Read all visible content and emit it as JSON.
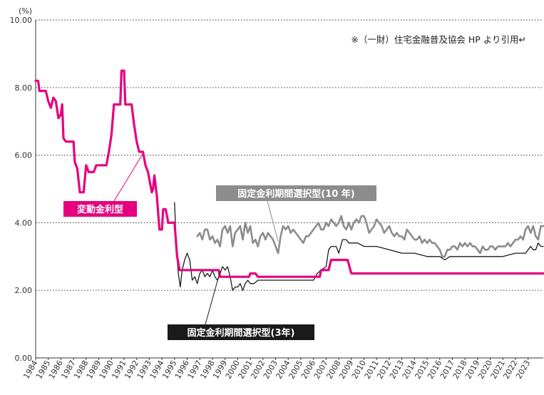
{
  "chart_data": {
    "type": "line",
    "y_unit": "(%)",
    "source_note": "※（一財）住宅金融普及協会 HP より引用↵",
    "ylim": [
      0,
      10
    ],
    "y_ticks": [
      "0.00",
      "2.00",
      "4.00",
      "6.00",
      "8.00",
      "10.00"
    ],
    "x_tick_labels": [
      "1984",
      "1985",
      "1986",
      "1987",
      "1988",
      "1989",
      "1990",
      "1991",
      "1992",
      "1993",
      "1994",
      "1995",
      "1996",
      "1997",
      "1998",
      "1999",
      "2000",
      "2001",
      "2002",
      "2003",
      "2004",
      "2005",
      "2006",
      "2007",
      "2008",
      "2009",
      "2010",
      "2011",
      "2012",
      "2013",
      "2014",
      "2015",
      "2016",
      "2017",
      "2018",
      "2019",
      "2020",
      "2021",
      "2022",
      "2023"
    ],
    "xlim": [
      1984,
      2024.2
    ],
    "grid": "dotted horizontal",
    "series": [
      {
        "name": "変動金利型",
        "color": "#e6007e",
        "points": [
          [
            1984.0,
            8.2
          ],
          [
            1984.2,
            8.2
          ],
          [
            1984.3,
            7.9
          ],
          [
            1984.8,
            7.9
          ],
          [
            1985.0,
            7.6
          ],
          [
            1985.2,
            7.4
          ],
          [
            1985.4,
            7.7
          ],
          [
            1985.6,
            7.6
          ],
          [
            1985.8,
            7.1
          ],
          [
            1986.0,
            7.2
          ],
          [
            1986.1,
            7.5
          ],
          [
            1986.2,
            6.5
          ],
          [
            1986.4,
            6.4
          ],
          [
            1987.0,
            6.4
          ],
          [
            1987.1,
            5.8
          ],
          [
            1987.3,
            5.6
          ],
          [
            1987.5,
            4.9
          ],
          [
            1987.8,
            4.9
          ],
          [
            1988.0,
            5.7
          ],
          [
            1988.2,
            5.5
          ],
          [
            1988.6,
            5.5
          ],
          [
            1988.8,
            5.7
          ],
          [
            1989.6,
            5.7
          ],
          [
            1989.8,
            6.1
          ],
          [
            1990.0,
            6.6
          ],
          [
            1990.2,
            7.5
          ],
          [
            1990.7,
            7.5
          ],
          [
            1990.8,
            8.5
          ],
          [
            1991.0,
            8.5
          ],
          [
            1991.1,
            7.5
          ],
          [
            1991.6,
            7.5
          ],
          [
            1991.8,
            6.9
          ],
          [
            1992.0,
            6.4
          ],
          [
            1992.2,
            6.1
          ],
          [
            1992.5,
            6.1
          ],
          [
            1992.7,
            5.7
          ],
          [
            1992.9,
            5.5
          ],
          [
            1993.2,
            4.9
          ],
          [
            1993.3,
            5.0
          ],
          [
            1993.4,
            5.4
          ],
          [
            1993.6,
            4.8
          ],
          [
            1993.8,
            3.8
          ],
          [
            1994.0,
            3.8
          ],
          [
            1994.1,
            4.4
          ],
          [
            1994.3,
            4.4
          ],
          [
            1994.5,
            4.0
          ],
          [
            1995.0,
            4.0
          ],
          [
            1995.2,
            3.0
          ],
          [
            1995.4,
            2.6
          ],
          [
            1998.5,
            2.6
          ],
          [
            1998.6,
            2.4
          ],
          [
            2000.9,
            2.4
          ],
          [
            2001.0,
            2.5
          ],
          [
            2001.4,
            2.5
          ],
          [
            2001.6,
            2.4
          ],
          [
            2006.5,
            2.4
          ],
          [
            2006.6,
            2.6
          ],
          [
            2007.2,
            2.6
          ],
          [
            2007.4,
            2.9
          ],
          [
            2008.7,
            2.9
          ],
          [
            2009.0,
            2.5
          ],
          [
            2024.2,
            2.5
          ]
        ]
      },
      {
        "name": "固定金利期間選択型(10 年)",
        "color": "#8c8c8c",
        "points": [
          [
            1996.8,
            3.6
          ],
          [
            1997.0,
            3.7
          ],
          [
            1997.2,
            3.5
          ],
          [
            1997.4,
            3.8
          ],
          [
            1997.6,
            3.8
          ],
          [
            1997.8,
            3.5
          ],
          [
            1998.0,
            3.6
          ],
          [
            1998.2,
            3.4
          ],
          [
            1998.4,
            3.5
          ],
          [
            1998.6,
            3.3
          ],
          [
            1998.8,
            3.8
          ],
          [
            1999.0,
            3.9
          ],
          [
            1999.2,
            3.7
          ],
          [
            1999.4,
            3.9
          ],
          [
            1999.6,
            3.3
          ],
          [
            1999.8,
            3.7
          ],
          [
            2000.0,
            3.8
          ],
          [
            2000.2,
            3.9
          ],
          [
            2000.4,
            3.5
          ],
          [
            2000.6,
            4.0
          ],
          [
            2000.8,
            3.7
          ],
          [
            2001.0,
            3.9
          ],
          [
            2001.2,
            3.4
          ],
          [
            2001.4,
            3.5
          ],
          [
            2001.6,
            3.3
          ],
          [
            2001.8,
            3.6
          ],
          [
            2002.0,
            3.7
          ],
          [
            2002.2,
            3.5
          ],
          [
            2002.4,
            3.7
          ],
          [
            2002.6,
            3.6
          ],
          [
            2002.8,
            3.5
          ],
          [
            2003.0,
            3.3
          ],
          [
            2003.2,
            3.1
          ],
          [
            2003.4,
            3.6
          ],
          [
            2003.6,
            3.9
          ],
          [
            2003.8,
            3.8
          ],
          [
            2004.0,
            3.9
          ],
          [
            2004.2,
            3.7
          ],
          [
            2004.4,
            3.8
          ],
          [
            2004.6,
            3.7
          ],
          [
            2004.8,
            3.6
          ],
          [
            2005.0,
            3.5
          ],
          [
            2005.2,
            3.4
          ],
          [
            2005.4,
            3.6
          ],
          [
            2005.6,
            3.6
          ],
          [
            2005.8,
            3.7
          ],
          [
            2006.0,
            3.8
          ],
          [
            2006.2,
            3.9
          ],
          [
            2006.4,
            4.0
          ],
          [
            2006.6,
            3.8
          ],
          [
            2006.8,
            3.8
          ],
          [
            2007.0,
            4.0
          ],
          [
            2007.2,
            3.9
          ],
          [
            2007.4,
            4.1
          ],
          [
            2007.6,
            4.0
          ],
          [
            2007.8,
            3.9
          ],
          [
            2008.0,
            4.0
          ],
          [
            2008.2,
            4.2
          ],
          [
            2008.4,
            3.9
          ],
          [
            2008.6,
            3.8
          ],
          [
            2008.8,
            4.0
          ],
          [
            2009.0,
            3.8
          ],
          [
            2009.2,
            4.0
          ],
          [
            2009.4,
            4.1
          ],
          [
            2009.6,
            4.0
          ],
          [
            2009.8,
            4.2
          ],
          [
            2010.0,
            4.2
          ],
          [
            2010.2,
            4.0
          ],
          [
            2010.4,
            3.7
          ],
          [
            2010.6,
            3.8
          ],
          [
            2010.8,
            3.9
          ],
          [
            2011.0,
            4.1
          ],
          [
            2011.2,
            4.0
          ],
          [
            2011.4,
            3.9
          ],
          [
            2011.6,
            3.7
          ],
          [
            2011.8,
            3.8
          ],
          [
            2012.0,
            3.9
          ],
          [
            2012.2,
            3.7
          ],
          [
            2012.4,
            3.6
          ],
          [
            2012.6,
            3.7
          ],
          [
            2012.8,
            3.6
          ],
          [
            2013.0,
            3.6
          ],
          [
            2013.2,
            3.5
          ],
          [
            2013.4,
            3.8
          ],
          [
            2013.6,
            3.7
          ],
          [
            2013.8,
            3.6
          ],
          [
            2014.0,
            3.5
          ],
          [
            2014.2,
            3.5
          ],
          [
            2014.4,
            3.6
          ],
          [
            2014.6,
            3.4
          ],
          [
            2014.8,
            3.5
          ],
          [
            2015.0,
            3.4
          ],
          [
            2015.2,
            3.5
          ],
          [
            2015.4,
            3.4
          ],
          [
            2015.6,
            3.4
          ],
          [
            2015.8,
            3.3
          ],
          [
            2016.0,
            3.2
          ],
          [
            2016.2,
            3.0
          ],
          [
            2016.4,
            3.0
          ],
          [
            2016.6,
            3.2
          ],
          [
            2016.8,
            3.2
          ],
          [
            2017.0,
            3.3
          ],
          [
            2017.2,
            3.3
          ],
          [
            2017.4,
            3.2
          ],
          [
            2017.6,
            3.4
          ],
          [
            2017.8,
            3.3
          ],
          [
            2018.0,
            3.4
          ],
          [
            2018.2,
            3.3
          ],
          [
            2018.4,
            3.4
          ],
          [
            2018.6,
            3.3
          ],
          [
            2018.8,
            3.3
          ],
          [
            2019.0,
            3.2
          ],
          [
            2019.2,
            3.1
          ],
          [
            2019.4,
            3.3
          ],
          [
            2019.6,
            3.2
          ],
          [
            2019.8,
            3.2
          ],
          [
            2020.0,
            3.3
          ],
          [
            2020.2,
            3.3
          ],
          [
            2020.4,
            3.2
          ],
          [
            2020.6,
            3.3
          ],
          [
            2020.8,
            3.3
          ],
          [
            2021.0,
            3.3
          ],
          [
            2021.2,
            3.3
          ],
          [
            2021.4,
            3.4
          ],
          [
            2021.6,
            3.3
          ],
          [
            2021.8,
            3.4
          ],
          [
            2022.0,
            3.5
          ],
          [
            2022.2,
            3.5
          ],
          [
            2022.4,
            3.6
          ],
          [
            2022.6,
            3.5
          ],
          [
            2022.8,
            3.8
          ],
          [
            2023.0,
            3.9
          ],
          [
            2023.2,
            3.7
          ],
          [
            2023.4,
            3.9
          ],
          [
            2023.6,
            3.6
          ],
          [
            2023.8,
            3.5
          ],
          [
            2024.0,
            3.9
          ],
          [
            2024.2,
            3.9
          ]
        ]
      },
      {
        "name": "固定金利期間選択型(3年)",
        "color": "#1a1a1a",
        "points": [
          [
            1995.0,
            4.6
          ],
          [
            1995.15,
            3.2
          ],
          [
            1995.3,
            2.5
          ],
          [
            1995.45,
            2.1
          ],
          [
            1995.6,
            2.6
          ],
          [
            1995.8,
            2.9
          ],
          [
            1996.0,
            3.1
          ],
          [
            1996.2,
            2.9
          ],
          [
            1996.4,
            2.3
          ],
          [
            1996.6,
            2.4
          ],
          [
            1996.8,
            2.2
          ],
          [
            1997.0,
            2.5
          ],
          [
            1997.2,
            2.6
          ],
          [
            1997.4,
            2.4
          ],
          [
            1997.6,
            2.5
          ],
          [
            1997.8,
            2.4
          ],
          [
            1998.0,
            2.6
          ],
          [
            1998.2,
            2.4
          ],
          [
            1998.4,
            2.3
          ],
          [
            1998.6,
            2.5
          ],
          [
            1998.8,
            2.7
          ],
          [
            1999.0,
            2.6
          ],
          [
            1999.2,
            2.7
          ],
          [
            1999.4,
            2.4
          ],
          [
            1999.6,
            2.0
          ],
          [
            1999.8,
            2.1
          ],
          [
            2000.0,
            2.1
          ],
          [
            2000.2,
            2.2
          ],
          [
            2000.4,
            2.0
          ],
          [
            2000.6,
            2.2
          ],
          [
            2000.8,
            2.3
          ],
          [
            2001.0,
            2.2
          ],
          [
            2001.3,
            2.2
          ],
          [
            2001.6,
            2.3
          ],
          [
            2006.0,
            2.3
          ],
          [
            2006.3,
            2.5
          ],
          [
            2006.6,
            2.6
          ],
          [
            2007.0,
            2.7
          ],
          [
            2007.2,
            3.2
          ],
          [
            2007.4,
            3.3
          ],
          [
            2007.8,
            3.3
          ],
          [
            2008.0,
            3.1
          ],
          [
            2008.3,
            3.5
          ],
          [
            2008.6,
            3.5
          ],
          [
            2008.8,
            3.4
          ],
          [
            2009.0,
            3.4
          ],
          [
            2009.5,
            3.4
          ],
          [
            2010.0,
            3.3
          ],
          [
            2011.0,
            3.3
          ],
          [
            2012.0,
            3.2
          ],
          [
            2013.0,
            3.1
          ],
          [
            2014.0,
            3.1
          ],
          [
            2015.0,
            3.0
          ],
          [
            2016.0,
            3.0
          ],
          [
            2016.4,
            2.9
          ],
          [
            2016.8,
            3.0
          ],
          [
            2017.0,
            3.0
          ],
          [
            2018.0,
            3.0
          ],
          [
            2019.0,
            3.0
          ],
          [
            2020.0,
            3.0
          ],
          [
            2021.0,
            3.0
          ],
          [
            2022.0,
            3.1
          ],
          [
            2022.8,
            3.1
          ],
          [
            2023.0,
            3.2
          ],
          [
            2023.2,
            3.3
          ],
          [
            2023.4,
            3.2
          ],
          [
            2023.6,
            3.2
          ],
          [
            2023.8,
            3.4
          ],
          [
            2024.0,
            3.3
          ],
          [
            2024.2,
            3.3
          ]
        ]
      }
    ],
    "annotations": {
      "hendo": "変動金利型",
      "kotei10": "固定金利期間選択型(10 年)",
      "kotei3": "固定金利期間選択型(3年)"
    }
  }
}
